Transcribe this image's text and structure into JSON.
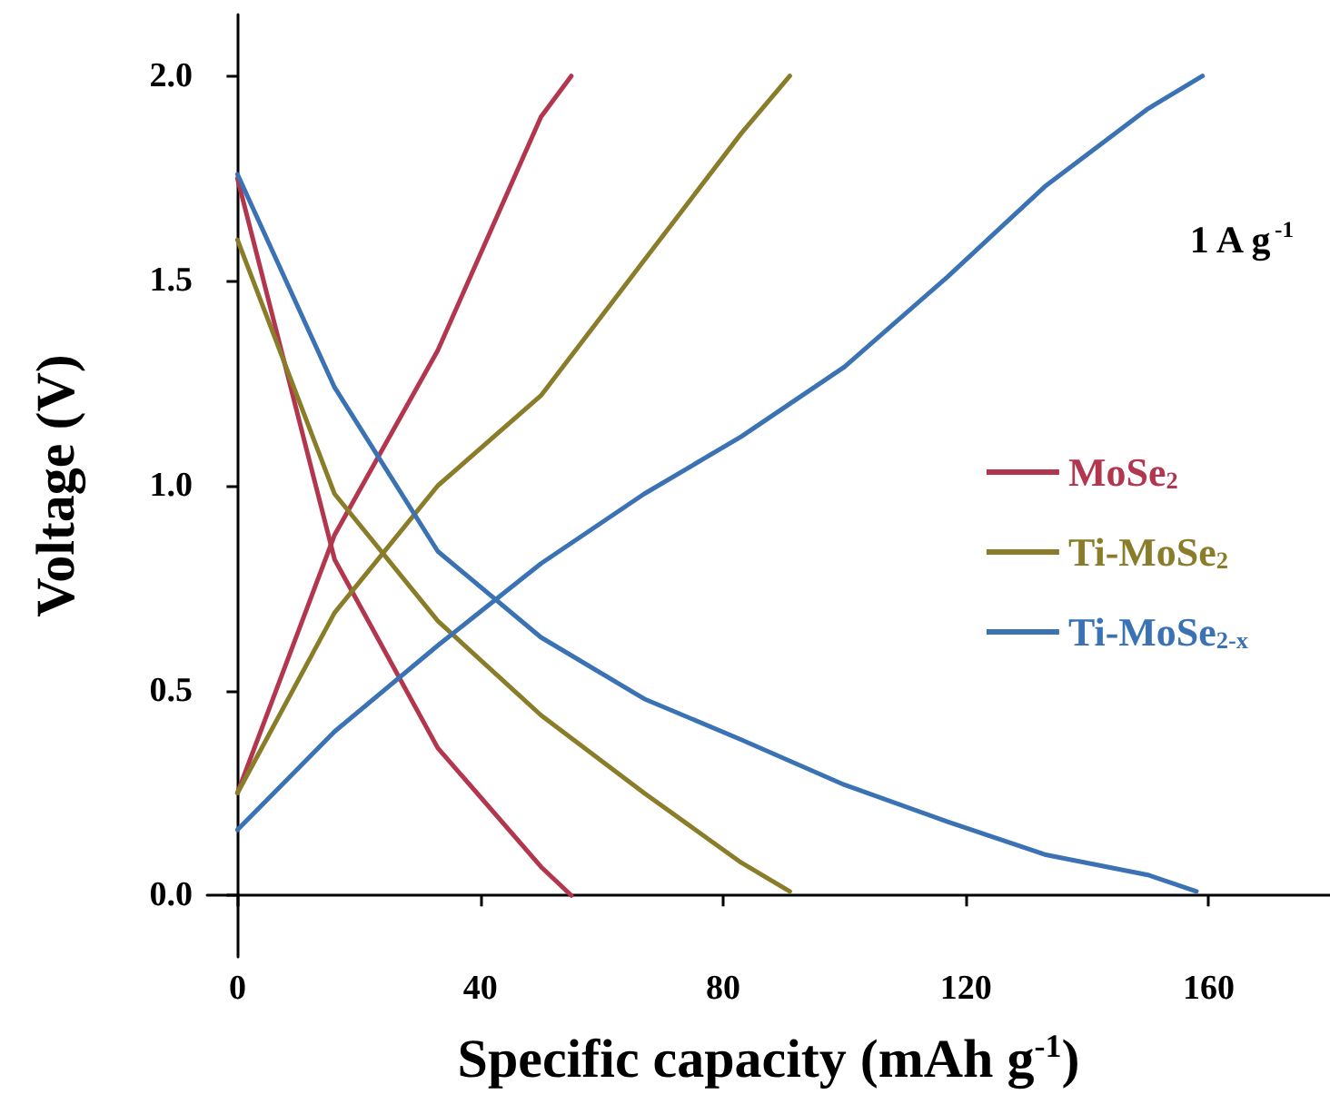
{
  "chart_data": {
    "type": "line",
    "xlabel": "Specific capacity (mAh g$^{-1}$)",
    "ylabel": "Voltage (V)",
    "annotations": [
      "1 A g$^{-1}$"
    ],
    "xlim": [
      -5,
      180
    ],
    "xticks": [
      0,
      40,
      80,
      120,
      160
    ],
    "ylim": [
      -0.15,
      2.15
    ],
    "yticks": [
      {
        "value": 0,
        "label": "0.0"
      },
      {
        "value": 0.5,
        "label": "0.5"
      },
      {
        "value": 1,
        "label": "1.0"
      },
      {
        "value": 1.5,
        "label": "1.5"
      },
      {
        "value": 2,
        "label": "2.0"
      }
    ],
    "grid": false,
    "legend": "right",
    "marker": "none",
    "line_style": "solid",
    "series": [
      {
        "name": "MoSe$_{2}$",
        "color": "#b3364f",
        "x": [
          0,
          16,
          33,
          50,
          55
        ],
        "values": [
          1.75,
          0.82,
          0.36,
          0.07,
          0.0
        ]
      },
      {
        "color": "#b3364f",
        "x": [
          0,
          16,
          33,
          50,
          55
        ],
        "values": [
          0.25,
          0.88,
          1.33,
          1.9,
          2.0
        ]
      },
      {
        "name": "Ti-MoSe$_{2}$",
        "color": "#8a7d2a",
        "x": [
          0,
          16,
          33,
          50,
          67,
          83,
          91
        ],
        "values": [
          1.6,
          0.98,
          0.67,
          0.44,
          0.25,
          0.08,
          0.01
        ]
      },
      {
        "color": "#8a7d2a",
        "x": [
          0,
          16,
          33,
          50,
          67,
          83,
          91
        ],
        "values": [
          0.25,
          0.69,
          1.0,
          1.22,
          1.55,
          1.86,
          2.0
        ]
      },
      {
        "name": "Ti-MoSe$_{2-x}$",
        "color": "#3a72b4",
        "x": [
          0,
          16,
          33,
          50,
          67,
          83,
          100,
          117,
          133,
          150,
          158
        ],
        "values": [
          1.76,
          1.24,
          0.84,
          0.63,
          0.48,
          0.38,
          0.27,
          0.18,
          0.1,
          0.05,
          0.01
        ]
      },
      {
        "color": "#3a72b4",
        "x": [
          0,
          16,
          33,
          50,
          67,
          83,
          100,
          117,
          133,
          150,
          159
        ],
        "values": [
          0.16,
          0.4,
          0.61,
          0.81,
          0.98,
          1.12,
          1.29,
          1.51,
          1.73,
          1.92,
          2.0
        ]
      }
    ]
  }
}
